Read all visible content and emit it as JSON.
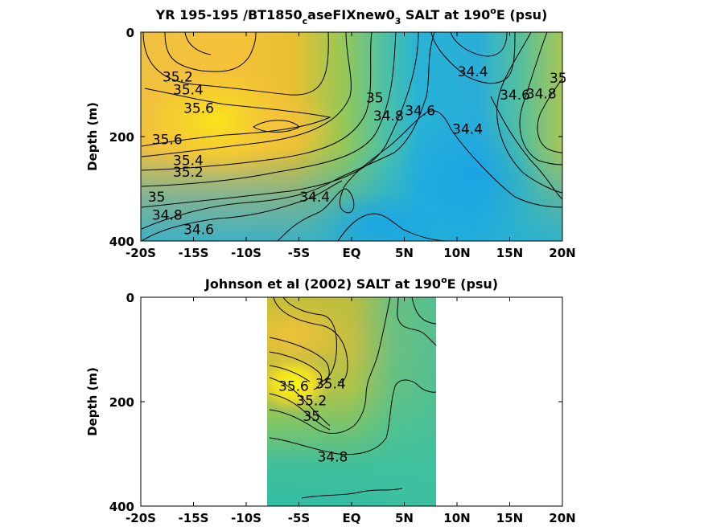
{
  "chart_data": [
    {
      "type": "heatmap",
      "title": "YR 195-195 /BT1850_caseFIXnew0_3 SALT at 190°E (psu)",
      "title_parts": {
        "pre": "YR 195-195 /BT1850",
        "sub1": "c",
        "mid": "aseFIXnew0",
        "sub2": "3",
        "post1": " SALT at 190",
        "sup": "o",
        "post2": "E (psu)"
      },
      "ylabel": "Depth (m)",
      "xlim": [
        -20,
        20
      ],
      "ylim": [
        0,
        400
      ],
      "y_reversed": true,
      "xticks": [
        -20,
        -15,
        -10,
        -5,
        0,
        5,
        10,
        15,
        20
      ],
      "xtick_labels": [
        "-20S",
        "-15S",
        "-10S",
        "-5S",
        "EQ",
        "5N",
        "10N",
        "15N",
        "20N"
      ],
      "yticks": [
        0,
        200,
        400
      ],
      "ytick_labels": [
        "0",
        "200",
        "400"
      ],
      "colormap": "parula",
      "color_range": [
        34.2,
        35.8
      ],
      "data_extent": [
        -20,
        20
      ],
      "contour_labels": [
        {
          "text": "35.2",
          "x": -16.5,
          "y": 85
        },
        {
          "text": "35.4",
          "x": -15.5,
          "y": 110
        },
        {
          "text": "35.6",
          "x": -14.5,
          "y": 145
        },
        {
          "text": "35.6",
          "x": -17.5,
          "y": 205
        },
        {
          "text": "35.4",
          "x": -15.5,
          "y": 245
        },
        {
          "text": "35.2",
          "x": -15.5,
          "y": 268
        },
        {
          "text": "35",
          "x": -18.5,
          "y": 315
        },
        {
          "text": "34.8",
          "x": -17.5,
          "y": 350
        },
        {
          "text": "34.6",
          "x": -14.5,
          "y": 378
        },
        {
          "text": "34.4",
          "x": -3.5,
          "y": 315
        },
        {
          "text": "35",
          "x": 2.2,
          "y": 125
        },
        {
          "text": "34.8",
          "x": 3.5,
          "y": 160
        },
        {
          "text": "34.6",
          "x": 6.5,
          "y": 150
        },
        {
          "text": "34.4",
          "x": 11.5,
          "y": 75
        },
        {
          "text": "34.6",
          "x": 15.5,
          "y": 120
        },
        {
          "text": "34.8",
          "x": 18.0,
          "y": 118
        },
        {
          "text": "35",
          "x": 19.6,
          "y": 88
        },
        {
          "text": "34.4",
          "x": 11.0,
          "y": 185
        }
      ]
    },
    {
      "type": "heatmap",
      "title": "Johnson et al (2002) SALT at 190°E (psu)",
      "title_parts": {
        "pre": "Johnson et al (2002) SALT at 190",
        "sup": "o",
        "post": "E (psu)"
      },
      "ylabel": "Depth (m)",
      "xlim": [
        -20,
        20
      ],
      "ylim": [
        0,
        400
      ],
      "y_reversed": true,
      "xticks": [
        -20,
        -15,
        -10,
        -5,
        0,
        5,
        10,
        15,
        20
      ],
      "xtick_labels": [
        "-20S",
        "-15S",
        "-10S",
        "-5S",
        "EQ",
        "5N",
        "10N",
        "15N",
        "20N"
      ],
      "yticks": [
        0,
        200,
        400
      ],
      "ytick_labels": [
        "0",
        "200",
        "400"
      ],
      "colormap": "parula",
      "color_range": [
        34.2,
        35.8
      ],
      "data_extent": [
        -8,
        8
      ],
      "contour_labels": [
        {
          "text": "34.8",
          "x": -1.8,
          "y": 305
        },
        {
          "text": "35",
          "x": -3.8,
          "y": 228
        },
        {
          "text": "35.2",
          "x": -3.8,
          "y": 198
        },
        {
          "text": "35.4",
          "x": -2.0,
          "y": 165
        },
        {
          "text": "35.6",
          "x": -5.5,
          "y": 170
        }
      ]
    }
  ]
}
